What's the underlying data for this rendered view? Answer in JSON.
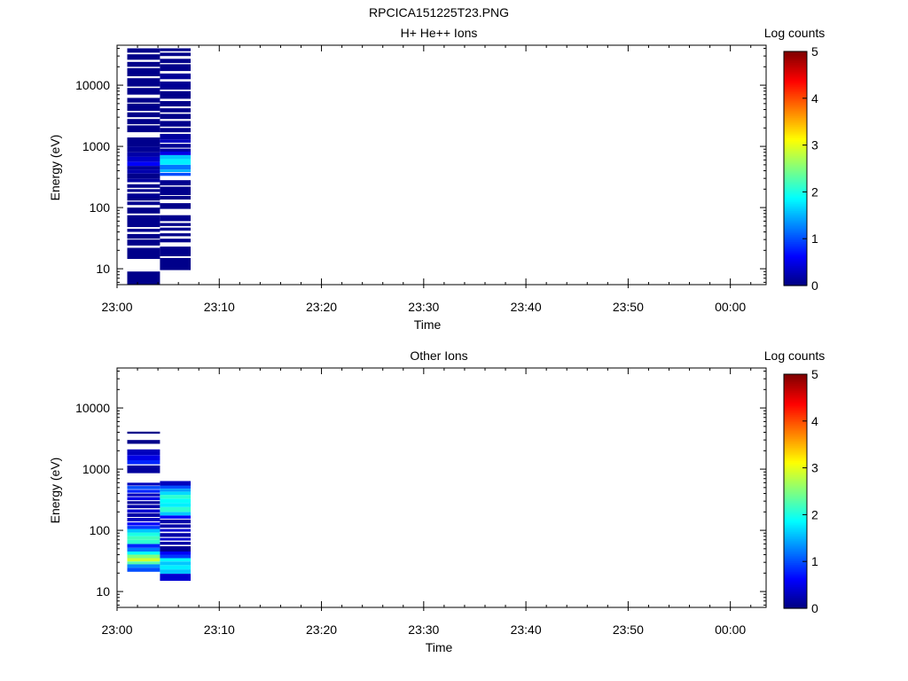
{
  "figure_title": "RPCICA151225T23.PNG",
  "chart_data": [
    {
      "type": "heatmap",
      "title": "H+ He++ Ions",
      "xlabel": "Time",
      "ylabel": "Energy (eV)",
      "x_ticks": [
        "23:00",
        "23:10",
        "23:20",
        "23:30",
        "23:40",
        "23:50",
        "00:00"
      ],
      "y_ticks": [
        "10",
        "100",
        "1000",
        "10000"
      ],
      "y_scale": "log",
      "ylim_eV": [
        5.5,
        45000
      ],
      "x_range_min": [
        0,
        63.5
      ],
      "colorbar": {
        "label": "Log counts",
        "ticks": [
          "0",
          "1",
          "2",
          "3",
          "4",
          "5"
        ],
        "range": [
          0,
          5
        ],
        "colormap": "jet"
      },
      "columns": [
        {
          "t_start_min": 1,
          "t_end_min": 4.2,
          "bins": [
            [
              5.5,
              9.0,
              0.05
            ],
            [
              14.5,
              22.0,
              0.05
            ],
            [
              24.0,
              30.0,
              0.05
            ],
            [
              31.0,
              37.0,
              0.06
            ],
            [
              40.0,
              45.0,
              0.08
            ],
            [
              48.0,
              75.0,
              0.06
            ],
            [
              80.0,
              100.0,
              0.05
            ],
            [
              110.0,
              125.0,
              0.08
            ],
            [
              130.0,
              150.0,
              0.05
            ],
            [
              150.0,
              170.0,
              0.1
            ],
            [
              180.0,
              200.0,
              0.06
            ],
            [
              210.0,
              240.0,
              0.05
            ],
            [
              260.0,
              300.0,
              0.15
            ],
            [
              300.0,
              360.0,
              0.05
            ],
            [
              360.0,
              420.0,
              0.22
            ],
            [
              420.0,
              480.0,
              0.12
            ],
            [
              480.0,
              560.0,
              0.6
            ],
            [
              560.0,
              680.0,
              0.35
            ],
            [
              680.0,
              800.0,
              0.2
            ],
            [
              800.0,
              1000.0,
              0.1
            ],
            [
              1000.0,
              1400.0,
              0.06
            ],
            [
              1700.0,
              2200.0,
              0.05
            ],
            [
              2300.0,
              2800.0,
              0.05
            ],
            [
              3000.0,
              3600.0,
              0.05
            ],
            [
              3800.0,
              5000.0,
              0.05
            ],
            [
              5200.0,
              6200.0,
              0.05
            ],
            [
              7000.0,
              9000.0,
              0.05
            ],
            [
              9500.0,
              13000.0,
              0.05
            ],
            [
              14000.0,
              19000.0,
              0.05
            ],
            [
              20000.0,
              24000.0,
              0.05
            ],
            [
              26000.0,
              32000.0,
              0.05
            ],
            [
              34000.0,
              40000.0,
              0.05
            ]
          ]
        },
        {
          "t_start_min": 4.2,
          "t_end_min": 7.2,
          "bins": [
            [
              9.5,
              15.0,
              0.05
            ],
            [
              16.0,
              23.0,
              0.05
            ],
            [
              27.0,
              31.0,
              0.06
            ],
            [
              34.0,
              38.0,
              0.05
            ],
            [
              42.0,
              47.0,
              0.08
            ],
            [
              50.0,
              56.0,
              0.05
            ],
            [
              60.0,
              75.0,
              0.07
            ],
            [
              95.0,
              118.0,
              0.05
            ],
            [
              135.0,
              155.0,
              0.05
            ],
            [
              160.0,
              220.0,
              0.06
            ],
            [
              230.0,
              280.0,
              0.08
            ],
            [
              330.0,
              370.0,
              1.0
            ],
            [
              380.0,
              420.0,
              1.5
            ],
            [
              420.0,
              500.0,
              1.2
            ],
            [
              500.0,
              620.0,
              1.8
            ],
            [
              620.0,
              720.0,
              1.6
            ],
            [
              720.0,
              820.0,
              0.5
            ],
            [
              820.0,
              920.0,
              0.2
            ],
            [
              950.0,
              1100.0,
              0.1
            ],
            [
              1150.0,
              1300.0,
              0.3
            ],
            [
              1300.0,
              1600.0,
              0.15
            ],
            [
              1700.0,
              2000.0,
              0.05
            ],
            [
              2100.0,
              2600.0,
              0.06
            ],
            [
              2800.0,
              3400.0,
              0.05
            ],
            [
              3600.0,
              4200.0,
              0.05
            ],
            [
              4500.0,
              5500.0,
              0.05
            ],
            [
              6000.0,
              8000.0,
              0.05
            ],
            [
              8500.0,
              11500.0,
              0.1
            ],
            [
              12500.0,
              15500.0,
              0.12
            ],
            [
              17000.0,
              22000.0,
              0.05
            ],
            [
              23000.0,
              27000.0,
              0.05
            ],
            [
              30000.0,
              34000.0,
              0.05
            ],
            [
              36000.0,
              40000.0,
              0.05
            ]
          ]
        }
      ]
    },
    {
      "type": "heatmap",
      "title": "Other Ions",
      "xlabel": "Time",
      "ylabel": "Energy (eV)",
      "x_ticks": [
        "23:00",
        "23:10",
        "23:20",
        "23:30",
        "23:40",
        "23:50",
        "00:00"
      ],
      "y_ticks": [
        "10",
        "100",
        "1000",
        "10000"
      ],
      "y_scale": "log",
      "ylim_eV": [
        5.5,
        45000
      ],
      "x_range_min": [
        0,
        63.5
      ],
      "colorbar": {
        "label": "Log counts",
        "ticks": [
          "0",
          "1",
          "2",
          "3",
          "4",
          "5"
        ],
        "range": [
          0,
          5
        ],
        "colormap": "jet"
      },
      "columns": [
        {
          "t_start_min": 1,
          "t_end_min": 4.2,
          "bins": [
            [
              21.0,
              24.5,
              1.0
            ],
            [
              24.5,
              28.0,
              1.3
            ],
            [
              28.0,
              31.0,
              2.3
            ],
            [
              31.0,
              35.0,
              2.9
            ],
            [
              35.0,
              40.0,
              2.5
            ],
            [
              40.0,
              45.0,
              1.9
            ],
            [
              45.0,
              52.0,
              1.2
            ],
            [
              52.0,
              60.0,
              0.8
            ],
            [
              60.0,
              70.0,
              2.1
            ],
            [
              70.0,
              80.0,
              2.2
            ],
            [
              80.0,
              92.0,
              2.0
            ],
            [
              92.0,
              105.0,
              1.6
            ],
            [
              105.0,
              118.0,
              0.9
            ],
            [
              120.0,
              135.0,
              0.6
            ],
            [
              140.0,
              160.0,
              0.3
            ],
            [
              165.0,
              190.0,
              0.2
            ],
            [
              195.0,
              220.0,
              0.4
            ],
            [
              230.0,
              260.0,
              0.2
            ],
            [
              270.0,
              300.0,
              0.15
            ],
            [
              310.0,
              350.0,
              0.5
            ],
            [
              360.0,
              400.0,
              0.3
            ],
            [
              410.0,
              460.0,
              0.8
            ],
            [
              470.0,
              530.0,
              1.0
            ],
            [
              540.0,
              600.0,
              0.3
            ],
            [
              860.0,
              1150.0,
              0.15
            ],
            [
              1200.0,
              1400.0,
              0.8
            ],
            [
              1400.0,
              1700.0,
              0.5
            ],
            [
              1700.0,
              2100.0,
              0.3
            ],
            [
              2600.0,
              3000.0,
              0.05
            ],
            [
              3800.0,
              4100.0,
              0.05
            ]
          ]
        },
        {
          "t_start_min": 4.2,
          "t_end_min": 7.2,
          "bins": [
            [
              15.0,
              19.5,
              0.4
            ],
            [
              19.5,
              23.0,
              1.6
            ],
            [
              23.0,
              27.0,
              1.8
            ],
            [
              27.0,
              31.0,
              1.6
            ],
            [
              31.0,
              35.0,
              1.9
            ],
            [
              35.0,
              40.0,
              0.9
            ],
            [
              40.0,
              45.0,
              0.6
            ],
            [
              45.0,
              55.0,
              0.1
            ],
            [
              58.0,
              65.0,
              0.2
            ],
            [
              68.0,
              75.0,
              0.4
            ],
            [
              78.0,
              90.0,
              0.2
            ],
            [
              95.0,
              105.0,
              0.4
            ],
            [
              110.0,
              125.0,
              0.2
            ],
            [
              130.0,
              150.0,
              0.2
            ],
            [
              155.0,
              175.0,
              0.6
            ],
            [
              175.0,
              200.0,
              1.6
            ],
            [
              200.0,
              240.0,
              2.1
            ],
            [
              240.0,
              280.0,
              1.8
            ],
            [
              280.0,
              330.0,
              1.9
            ],
            [
              330.0,
              380.0,
              2.1
            ],
            [
              380.0,
              430.0,
              1.7
            ],
            [
              430.0,
              480.0,
              1.4
            ],
            [
              480.0,
              540.0,
              1.0
            ],
            [
              540.0,
              640.0,
              0.3
            ]
          ]
        }
      ]
    }
  ]
}
